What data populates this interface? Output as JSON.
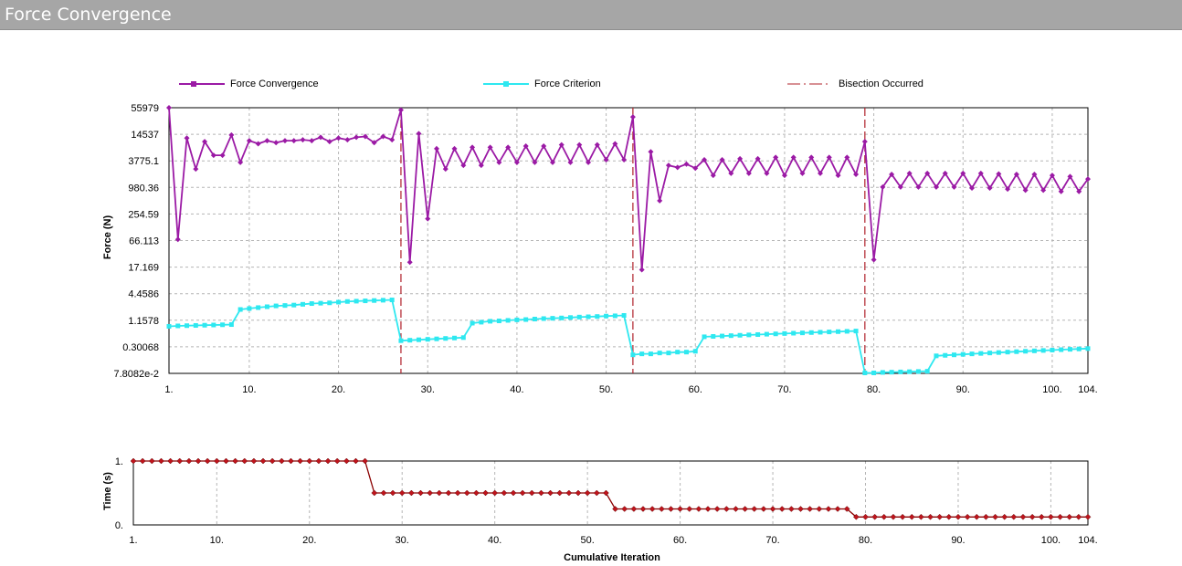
{
  "window": {
    "title": "Force Convergence"
  },
  "legend": [
    {
      "label": "Force Convergence",
      "color": "#9b1aa5"
    },
    {
      "label": "Force Criterion",
      "color": "#2ee8f0"
    },
    {
      "label": "Bisection Occurred",
      "color": "#b0202a"
    }
  ],
  "chart_data": [
    {
      "type": "line",
      "title": "",
      "xlabel": "",
      "ylabel": "Force (N)",
      "yscale": "log",
      "xlim": [
        1,
        104
      ],
      "ylim": [
        0.078082,
        55979
      ],
      "x_ticks": [
        "1.",
        "10.",
        "20.",
        "30.",
        "40.",
        "50.",
        "60.",
        "70.",
        "80.",
        "90.",
        "100.",
        "104."
      ],
      "x_tick_values": [
        1,
        10,
        20,
        30,
        40,
        50,
        60,
        70,
        80,
        90,
        100,
        104
      ],
      "y_ticks": [
        "55979",
        "14537",
        "3775.1",
        "980.36",
        "254.59",
        "66.113",
        "17.169",
        "4.4586",
        "1.1578",
        "0.30068",
        "7.8082e-2"
      ],
      "y_tick_values": [
        55979,
        14537,
        3775.1,
        980.36,
        254.59,
        66.113,
        17.169,
        4.4586,
        1.1578,
        0.30068,
        0.078082
      ],
      "grid": true,
      "legend_position": "top",
      "bisections": [
        27,
        53,
        79
      ],
      "series": [
        {
          "name": "Force Convergence",
          "color": "#9b1aa5",
          "x": [
            1,
            2,
            3,
            4,
            5,
            6,
            7,
            8,
            9,
            10,
            11,
            12,
            13,
            14,
            15,
            16,
            17,
            18,
            19,
            20,
            21,
            22,
            23,
            24,
            25,
            26,
            27,
            28,
            29,
            30,
            31,
            32,
            33,
            34,
            35,
            36,
            37,
            38,
            39,
            40,
            41,
            42,
            43,
            44,
            45,
            46,
            47,
            48,
            49,
            50,
            51,
            52,
            53,
            54,
            55,
            56,
            57,
            58,
            59,
            60,
            61,
            62,
            63,
            64,
            65,
            66,
            67,
            68,
            69,
            70,
            71,
            72,
            73,
            74,
            75,
            76,
            77,
            78,
            79,
            80,
            81,
            82,
            83,
            84,
            85,
            86,
            87,
            88,
            89,
            90,
            91,
            92,
            93,
            94,
            95,
            96,
            97,
            98,
            99,
            100,
            101,
            102,
            103,
            104
          ],
          "values": [
            55979,
            70,
            12000,
            2500,
            10000,
            5000,
            5000,
            14000,
            3500,
            10500,
            9000,
            10500,
            9500,
            10500,
            10500,
            11000,
            10500,
            12500,
            10000,
            12000,
            11000,
            12500,
            13000,
            9500,
            13000,
            11000,
            50000,
            22,
            15000,
            200,
            7000,
            2500,
            7000,
            3000,
            7500,
            3000,
            7500,
            3500,
            7500,
            3500,
            8000,
            3500,
            8000,
            3500,
            8500,
            3500,
            8500,
            3500,
            8500,
            4000,
            9000,
            4000,
            35000,
            15,
            6000,
            500,
            3000,
            2700,
            3200,
            2600,
            4000,
            1800,
            4000,
            2000,
            4200,
            2000,
            4200,
            2000,
            4500,
            1800,
            4500,
            2000,
            4500,
            2000,
            4500,
            1800,
            4500,
            1900,
            10000,
            25,
            1000,
            1900,
            1000,
            2000,
            1000,
            2000,
            1000,
            2000,
            1000,
            2000,
            950,
            2000,
            950,
            1950,
            900,
            1900,
            850,
            1900,
            850,
            1800,
            800,
            1700,
            800,
            1500
          ]
        },
        {
          "name": "Force Criterion",
          "color": "#2ee8f0",
          "x": [
            1,
            2,
            3,
            4,
            5,
            6,
            7,
            8,
            9,
            10,
            11,
            12,
            13,
            14,
            15,
            16,
            17,
            18,
            19,
            20,
            21,
            22,
            23,
            24,
            25,
            26,
            27,
            28,
            29,
            30,
            31,
            32,
            33,
            34,
            35,
            36,
            37,
            38,
            39,
            40,
            41,
            42,
            43,
            44,
            45,
            46,
            47,
            48,
            49,
            50,
            51,
            52,
            53,
            54,
            55,
            56,
            57,
            58,
            59,
            60,
            61,
            62,
            63,
            64,
            65,
            66,
            67,
            68,
            69,
            70,
            71,
            72,
            73,
            74,
            75,
            76,
            77,
            78,
            79,
            80,
            81,
            82,
            83,
            84,
            85,
            86,
            87,
            88,
            89,
            90,
            91,
            92,
            93,
            94,
            95,
            96,
            97,
            98,
            99,
            100,
            101,
            102,
            103,
            104
          ],
          "values": [
            0.85,
            0.87,
            0.88,
            0.89,
            0.9,
            0.91,
            0.92,
            0.93,
            2.0,
            2.1,
            2.2,
            2.3,
            2.4,
            2.45,
            2.5,
            2.6,
            2.7,
            2.75,
            2.8,
            2.9,
            3.0,
            3.05,
            3.1,
            3.15,
            3.2,
            3.25,
            0.41,
            0.42,
            0.43,
            0.44,
            0.45,
            0.46,
            0.47,
            0.48,
            1.0,
            1.05,
            1.1,
            1.12,
            1.15,
            1.18,
            1.2,
            1.23,
            1.26,
            1.28,
            1.3,
            1.33,
            1.36,
            1.38,
            1.4,
            1.43,
            1.45,
            1.48,
            0.2,
            0.21,
            0.21,
            0.22,
            0.22,
            0.23,
            0.23,
            0.24,
            0.5,
            0.51,
            0.52,
            0.53,
            0.54,
            0.55,
            0.56,
            0.57,
            0.58,
            0.59,
            0.6,
            0.61,
            0.62,
            0.63,
            0.64,
            0.65,
            0.66,
            0.67,
            0.08,
            0.08,
            0.082,
            0.083,
            0.084,
            0.085,
            0.086,
            0.087,
            0.19,
            0.195,
            0.2,
            0.205,
            0.21,
            0.215,
            0.22,
            0.225,
            0.23,
            0.235,
            0.24,
            0.245,
            0.25,
            0.255,
            0.26,
            0.265,
            0.27,
            0.275
          ]
        }
      ]
    },
    {
      "type": "line",
      "title": "",
      "xlabel": "Cumulative Iteration",
      "ylabel": "Time (s)",
      "xlim": [
        1,
        104
      ],
      "ylim": [
        0,
        1
      ],
      "x_ticks": [
        "1.",
        "10.",
        "20.",
        "30.",
        "40.",
        "50.",
        "60.",
        "70.",
        "80.",
        "90.",
        "100.",
        "104."
      ],
      "x_tick_values": [
        1,
        10,
        20,
        30,
        40,
        50,
        60,
        70,
        80,
        90,
        100,
        104
      ],
      "y_ticks": [
        "1.",
        "0."
      ],
      "y_tick_values": [
        1,
        0
      ],
      "grid": true,
      "series": [
        {
          "name": "",
          "color": "#8b0000",
          "x": [
            1,
            2,
            3,
            4,
            5,
            6,
            7,
            8,
            9,
            10,
            11,
            12,
            13,
            14,
            15,
            16,
            17,
            18,
            19,
            20,
            21,
            22,
            23,
            24,
            25,
            26,
            27,
            28,
            29,
            30,
            31,
            32,
            33,
            34,
            35,
            36,
            37,
            38,
            39,
            40,
            41,
            42,
            43,
            44,
            45,
            46,
            47,
            48,
            49,
            50,
            51,
            52,
            53,
            54,
            55,
            56,
            57,
            58,
            59,
            60,
            61,
            62,
            63,
            64,
            65,
            66,
            67,
            68,
            69,
            70,
            71,
            72,
            73,
            74,
            75,
            76,
            77,
            78,
            79,
            80,
            81,
            82,
            83,
            84,
            85,
            86,
            87,
            88,
            89,
            90,
            91,
            92,
            93,
            94,
            95,
            96,
            97,
            98,
            99,
            100,
            101,
            102,
            103,
            104
          ],
          "values": [
            1,
            1,
            1,
            1,
            1,
            1,
            1,
            1,
            1,
            1,
            1,
            1,
            1,
            1,
            1,
            1,
            1,
            1,
            1,
            1,
            1,
            1,
            1,
            1,
            1,
            1,
            0.5,
            0.5,
            0.5,
            0.5,
            0.5,
            0.5,
            0.5,
            0.5,
            0.5,
            0.5,
            0.5,
            0.5,
            0.5,
            0.5,
            0.5,
            0.5,
            0.5,
            0.5,
            0.5,
            0.5,
            0.5,
            0.5,
            0.5,
            0.5,
            0.5,
            0.5,
            0.25,
            0.25,
            0.25,
            0.25,
            0.25,
            0.25,
            0.25,
            0.25,
            0.25,
            0.25,
            0.25,
            0.25,
            0.25,
            0.25,
            0.25,
            0.25,
            0.25,
            0.25,
            0.25,
            0.25,
            0.25,
            0.25,
            0.25,
            0.25,
            0.25,
            0.25,
            0.125,
            0.125,
            0.125,
            0.125,
            0.125,
            0.125,
            0.125,
            0.125,
            0.125,
            0.125,
            0.125,
            0.125,
            0.125,
            0.125,
            0.125,
            0.125,
            0.125,
            0.125,
            0.125,
            0.125,
            0.125,
            0.125,
            0.125,
            0.125,
            0.125,
            0.125
          ]
        }
      ]
    }
  ]
}
